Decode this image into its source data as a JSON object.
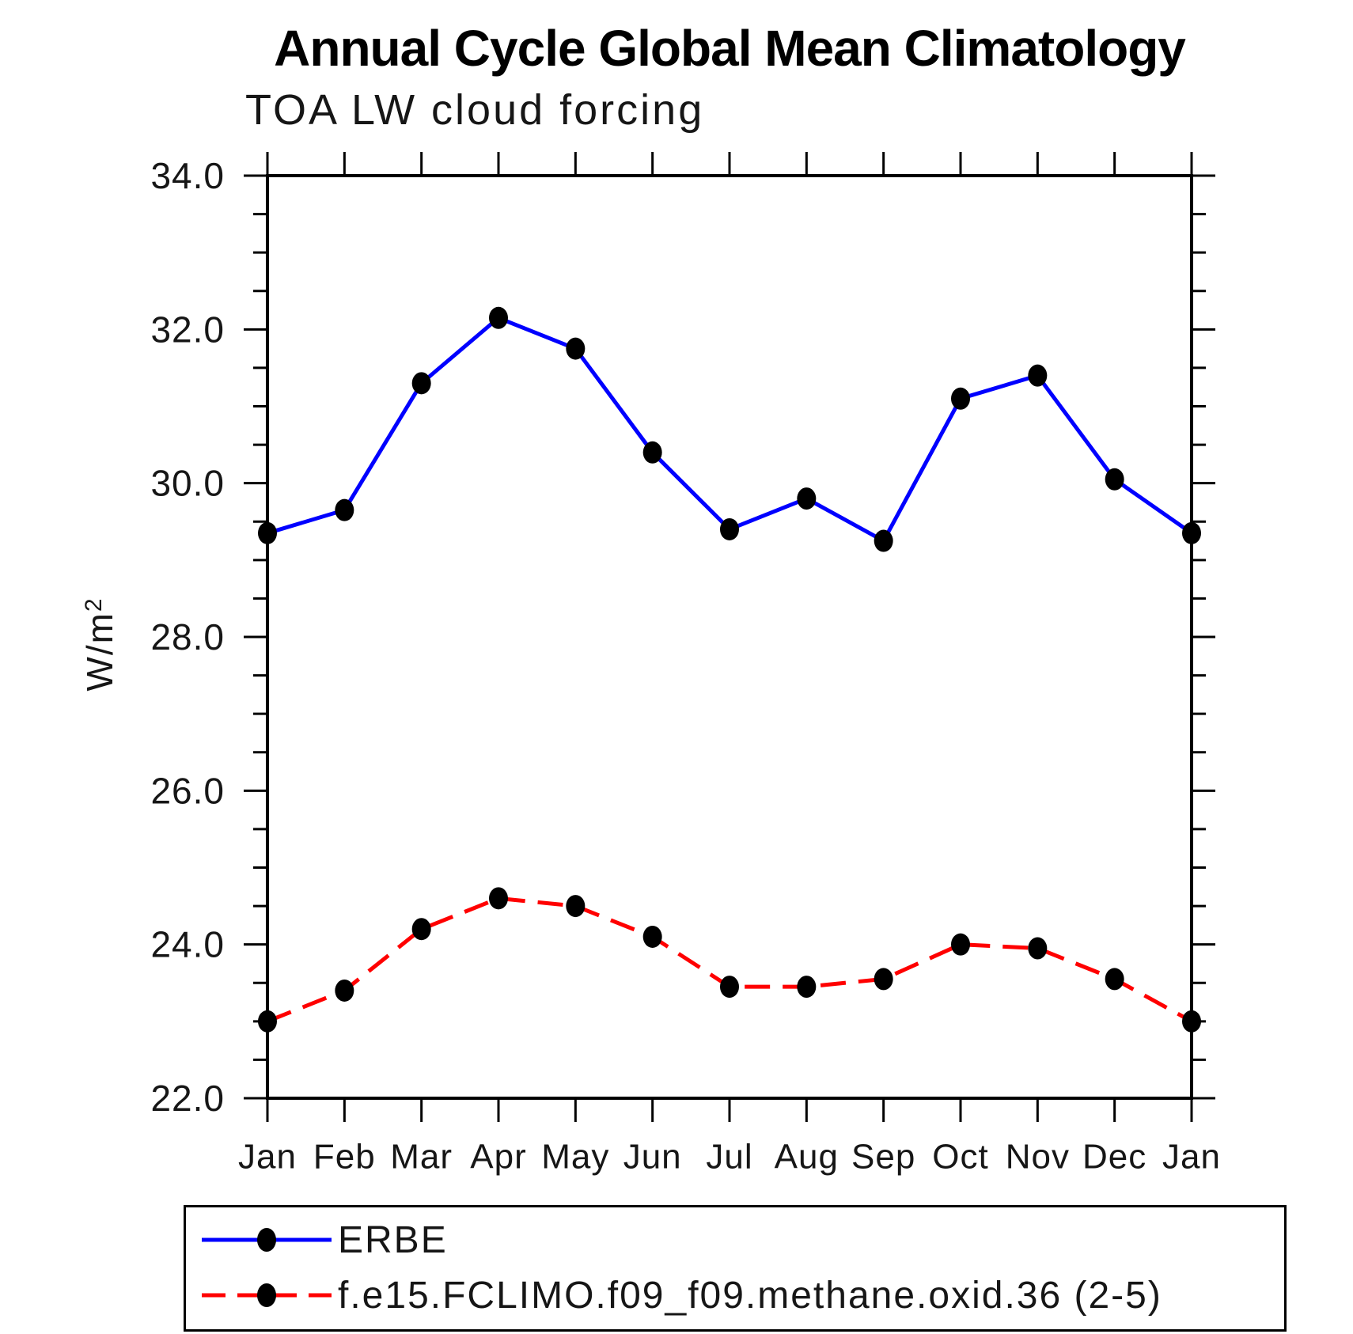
{
  "chart_data": {
    "type": "line",
    "title": "Annual Cycle Global Mean Climatology",
    "subtitle": "TOA LW cloud forcing",
    "ylabel": "W/m²",
    "ylabel_base": "W/m",
    "ylabel_exponent": "2",
    "x_categories": [
      "Jan",
      "Feb",
      "Mar",
      "Apr",
      "May",
      "Jun",
      "Jul",
      "Aug",
      "Sep",
      "Oct",
      "Nov",
      "Dec",
      "Jan"
    ],
    "ylim": [
      22.0,
      34.0
    ],
    "ytick_major_step": 2.0,
    "ytick_minor_step": 0.5,
    "ytick_labels": [
      "34.0",
      "32.0",
      "30.0",
      "28.0",
      "26.0",
      "24.0",
      "22.0"
    ],
    "grid": false,
    "legend_position": "bottom",
    "series": [
      {
        "name": "ERBE",
        "color": "#0000ff",
        "line_style": "solid",
        "marker": "filled-circle",
        "marker_color": "#000000",
        "values": [
          29.35,
          29.65,
          31.3,
          32.15,
          31.75,
          30.4,
          29.4,
          29.8,
          29.25,
          31.1,
          31.4,
          30.05,
          29.35
        ]
      },
      {
        "name": "f.e15.FCLIMO.f09_f09.methane.oxid.36 (2-5)",
        "color": "#ff0000",
        "line_style": "dashed",
        "marker": "filled-circle",
        "marker_color": "#000000",
        "values": [
          23.0,
          23.4,
          24.2,
          24.6,
          24.5,
          24.1,
          23.45,
          23.45,
          23.55,
          24.0,
          23.95,
          23.55,
          23.0
        ]
      }
    ],
    "axis_color": "#000000"
  }
}
